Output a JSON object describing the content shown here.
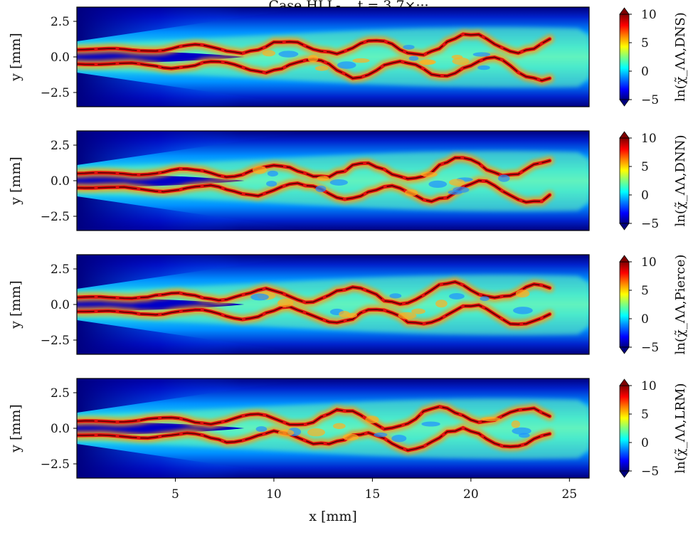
{
  "title": "Case HLL-... t = 3.7×···",
  "chart_data": {
    "type": "heatmap",
    "shared_x": {
      "label": "x [mm]",
      "range": [
        0,
        26
      ],
      "ticks": [
        5,
        10,
        15,
        20,
        25
      ],
      "tick_labels": [
        "5",
        "10",
        "15",
        "20",
        "25"
      ]
    },
    "panels": [
      {
        "name": "DNS",
        "ylabel": "y [mm]",
        "yrange": [
          -3.5,
          3.5
        ],
        "yticks": [
          2.5,
          0.0,
          -2.5
        ],
        "ytick_labels": [
          "2.5",
          "0.0",
          "−2.5"
        ],
        "colorbar_label": "ln(χ̃_ΛΛ,DNS)",
        "colorbar_range": [
          -5,
          10
        ],
        "colorbar_ticks": [
          "10",
          "5",
          "0",
          "−5"
        ]
      },
      {
        "name": "DNN",
        "ylabel": "y [mm]",
        "yrange": [
          -3.5,
          3.5
        ],
        "yticks": [
          2.5,
          0.0,
          -2.5
        ],
        "ytick_labels": [
          "2.5",
          "0.0",
          "−2.5"
        ],
        "colorbar_label": "ln(χ̃_ΛΛ,DNN)",
        "colorbar_range": [
          -5,
          10
        ],
        "colorbar_ticks": [
          "10",
          "5",
          "0",
          "−5"
        ]
      },
      {
        "name": "Pierce",
        "ylabel": "y [mm]",
        "yrange": [
          -3.5,
          3.5
        ],
        "yticks": [
          2.5,
          0.0,
          -2.5
        ],
        "ytick_labels": [
          "2.5",
          "0.0",
          "−2.5"
        ],
        "colorbar_label": "ln(χ̃_ΛΛ,Pierce)",
        "colorbar_range": [
          -5,
          10
        ],
        "colorbar_ticks": [
          "10",
          "5",
          "0",
          "−5"
        ]
      },
      {
        "name": "LRM",
        "ylabel": "y [mm]",
        "yrange": [
          -3.5,
          3.5
        ],
        "yticks": [
          2.5,
          0.0,
          -2.5
        ],
        "ytick_labels": [
          "2.5",
          "0.0",
          "−2.5"
        ],
        "colorbar_label": "ln(χ̃_ΛΛ,LRM)",
        "colorbar_range": [
          -5,
          10
        ],
        "colorbar_ticks": [
          "10",
          "5",
          "0",
          "−5"
        ]
      }
    ],
    "colormap": "jet",
    "colormap_stops": [
      "#00007f",
      "#0000ff",
      "#007fff",
      "#00ffff",
      "#7fff7f",
      "#ffff00",
      "#ff7f00",
      "#ff0000",
      "#7f0000"
    ],
    "flame_region_x": [
      0,
      24
    ],
    "jet_core_x": [
      0,
      8.5
    ],
    "grid": false
  }
}
